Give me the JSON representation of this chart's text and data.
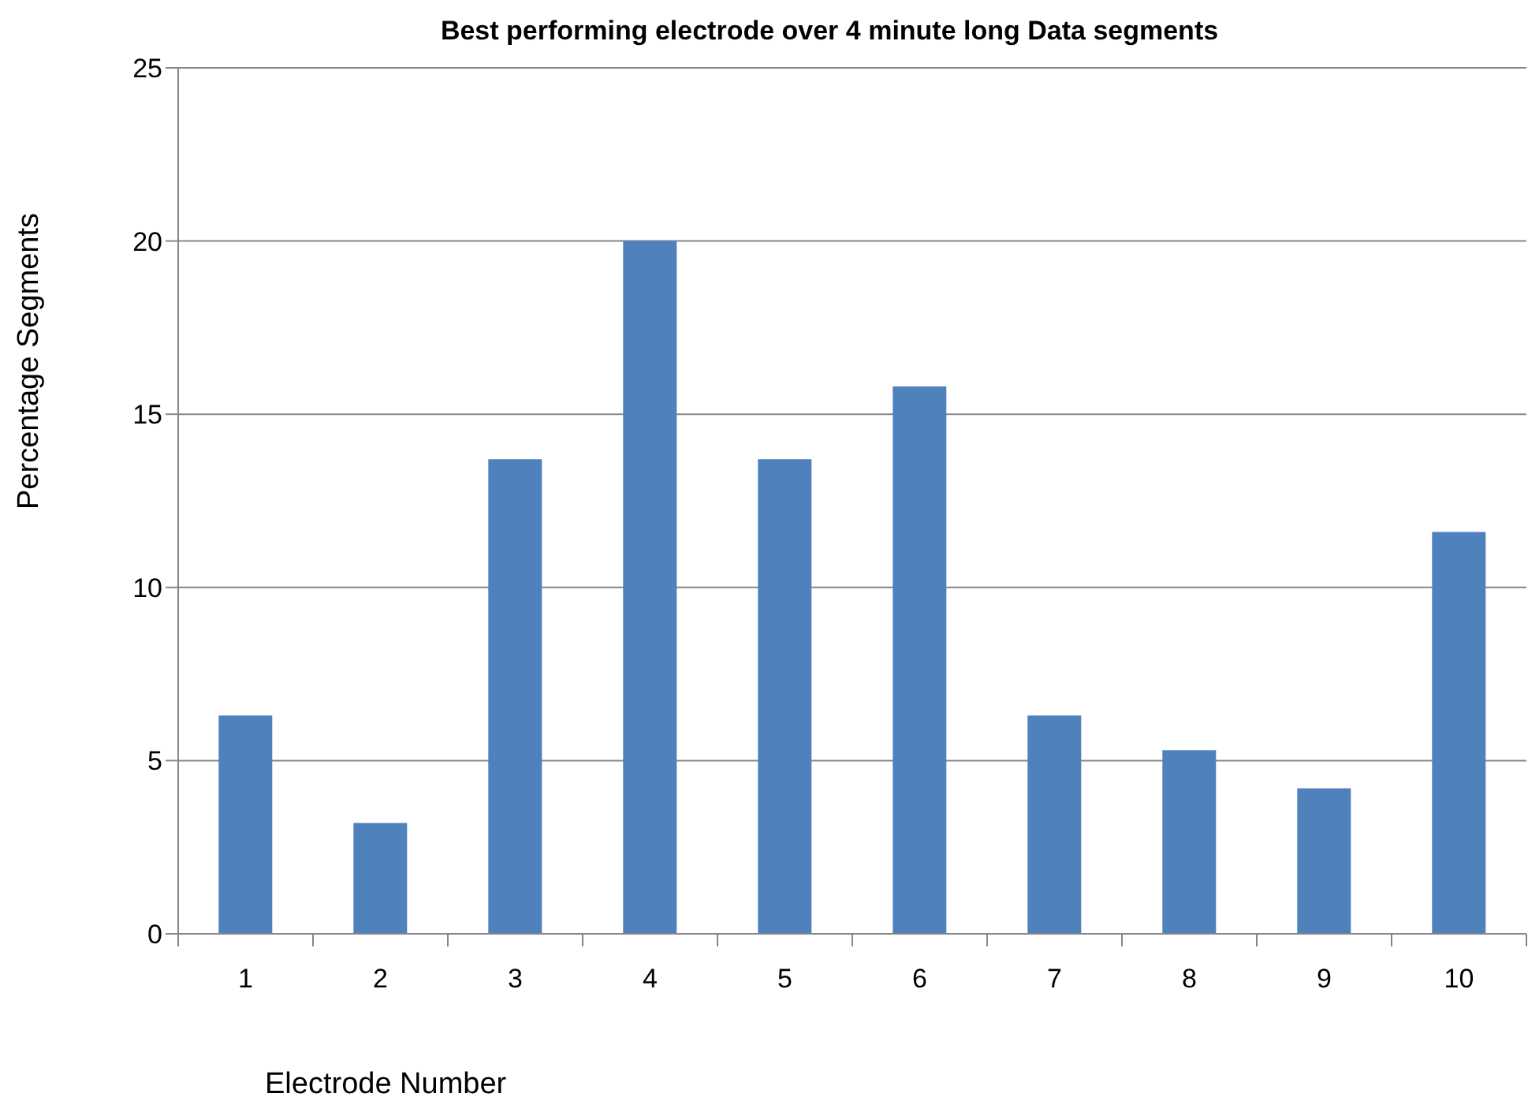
{
  "chart_data": {
    "type": "bar",
    "title": "Best performing electrode over 4 minute long Data segments",
    "xlabel": "Electrode Number",
    "ylabel": "Percentage Segments",
    "categories": [
      "1",
      "2",
      "3",
      "4",
      "5",
      "6",
      "7",
      "8",
      "9",
      "10"
    ],
    "values": [
      6.3,
      3.2,
      13.7,
      20,
      13.7,
      15.8,
      6.3,
      5.3,
      4.2,
      11.6
    ],
    "color": "#4f81bd",
    "ylim": [
      0,
      25
    ],
    "yticks": [
      0,
      5,
      10,
      15,
      20,
      25
    ],
    "grid": "y"
  }
}
